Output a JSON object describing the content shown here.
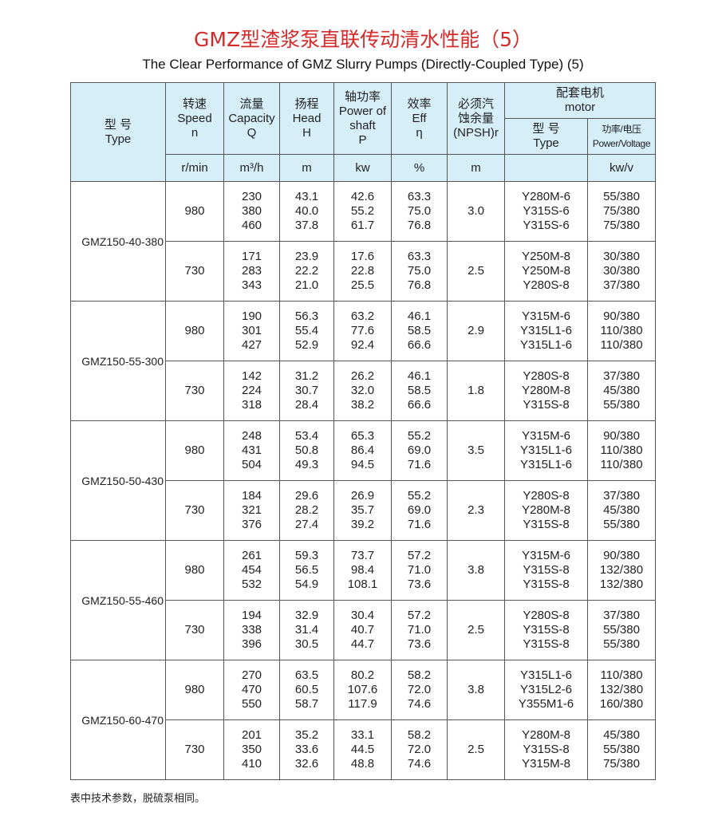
{
  "title": "GMZ型渣浆泵直联传动清水性能（5）",
  "subtitle": "The Clear Performance of GMZ Slurry Pumps (Directly-Coupled Type) (5)",
  "header": {
    "type": [
      "型 号",
      "Type"
    ],
    "speed": [
      "转速",
      "Speed",
      "n"
    ],
    "capacity": [
      "流量",
      "Capacity",
      "Q"
    ],
    "head": [
      "扬程",
      "Head",
      "H"
    ],
    "power": [
      "轴功率",
      "Power of",
      "shaft",
      "P"
    ],
    "eff": [
      "效率",
      "Eff",
      "η"
    ],
    "npsh": [
      "必须汽",
      "蚀余量",
      "(NPSH)r"
    ],
    "motor": [
      "配套电机",
      "motor"
    ],
    "motor_type": [
      "型 号",
      "Type"
    ],
    "motor_pv": [
      "功率/电压",
      "Power/Voltage"
    ],
    "units": {
      "speed": "r/min",
      "capacity": "m³/h",
      "head": "m",
      "power": "kw",
      "eff": "%",
      "npsh": "m",
      "motor_type": "",
      "motor_pv": "kw/v"
    }
  },
  "models": [
    {
      "name": "GMZ150-40-380",
      "speeds": [
        {
          "n": "980",
          "q": [
            "230",
            "380",
            "460"
          ],
          "h": [
            "43.1",
            "40.0",
            "37.8"
          ],
          "p": [
            "42.6",
            "55.2",
            "61.7"
          ],
          "eff": [
            "63.3",
            "75.0",
            "76.8"
          ],
          "npsh": "3.0",
          "motor": [
            "Y280M-6",
            "Y315S-6",
            "Y315S-6"
          ],
          "pv": [
            "55/380",
            "75/380",
            "75/380"
          ]
        },
        {
          "n": "730",
          "q": [
            "171",
            "283",
            "343"
          ],
          "h": [
            "23.9",
            "22.2",
            "21.0"
          ],
          "p": [
            "17.6",
            "22.8",
            "25.5"
          ],
          "eff": [
            "63.3",
            "75.0",
            "76.8"
          ],
          "npsh": "2.5",
          "motor": [
            "Y250M-8",
            "Y250M-8",
            "Y280S-8"
          ],
          "pv": [
            "30/380",
            "30/380",
            "37/380"
          ]
        }
      ]
    },
    {
      "name": "GMZ150-55-300",
      "speeds": [
        {
          "n": "980",
          "q": [
            "190",
            "301",
            "427"
          ],
          "h": [
            "56.3",
            "55.4",
            "52.9"
          ],
          "p": [
            "63.2",
            "77.6",
            "92.4"
          ],
          "eff": [
            "46.1",
            "58.5",
            "66.6"
          ],
          "npsh": "2.9",
          "motor": [
            "Y315M-6",
            "Y315L1-6",
            "Y315L1-6"
          ],
          "pv": [
            "90/380",
            "110/380",
            "110/380"
          ]
        },
        {
          "n": "730",
          "q": [
            "142",
            "224",
            "318"
          ],
          "h": [
            "31.2",
            "30.7",
            "28.4"
          ],
          "p": [
            "26.2",
            "32.0",
            "38.2"
          ],
          "eff": [
            "46.1",
            "58.5",
            "66.6"
          ],
          "npsh": "1.8",
          "motor": [
            "Y280S-8",
            "Y280M-8",
            "Y315S-8"
          ],
          "pv": [
            "37/380",
            "45/380",
            "55/380"
          ]
        }
      ]
    },
    {
      "name": "GMZ150-50-430",
      "speeds": [
        {
          "n": "980",
          "q": [
            "248",
            "431",
            "504"
          ],
          "h": [
            "53.4",
            "50.8",
            "49.3"
          ],
          "p": [
            "65.3",
            "86.4",
            "94.5"
          ],
          "eff": [
            "55.2",
            "69.0",
            "71.6"
          ],
          "npsh": "3.5",
          "motor": [
            "Y315M-6",
            "Y315L1-6",
            "Y315L1-6"
          ],
          "pv": [
            "90/380",
            "110/380",
            "110/380"
          ]
        },
        {
          "n": "730",
          "q": [
            "184",
            "321",
            "376"
          ],
          "h": [
            "29.6",
            "28.2",
            "27.4"
          ],
          "p": [
            "26.9",
            "35.7",
            "39.2"
          ],
          "eff": [
            "55.2",
            "69.0",
            "71.6"
          ],
          "npsh": "2.3",
          "motor": [
            "Y280S-8",
            "Y280M-8",
            "Y315S-8"
          ],
          "pv": [
            "37/380",
            "45/380",
            "55/380"
          ]
        }
      ]
    },
    {
      "name": "GMZ150-55-460",
      "speeds": [
        {
          "n": "980",
          "q": [
            "261",
            "454",
            "532"
          ],
          "h": [
            "59.3",
            "56.5",
            "54.9"
          ],
          "p": [
            "73.7",
            "98.4",
            "108.1"
          ],
          "eff": [
            "57.2",
            "71.0",
            "73.6"
          ],
          "npsh": "3.8",
          "motor": [
            "Y315M-6",
            "Y315S-8",
            "Y315S-8"
          ],
          "pv": [
            "90/380",
            "132/380",
            "132/380"
          ]
        },
        {
          "n": "730",
          "q": [
            "194",
            "338",
            "396"
          ],
          "h": [
            "32.9",
            "31.4",
            "30.5"
          ],
          "p": [
            "30.4",
            "40.7",
            "44.7"
          ],
          "eff": [
            "57.2",
            "71.0",
            "73.6"
          ],
          "npsh": "2.5",
          "motor": [
            "Y280S-8",
            "Y315S-8",
            "Y315S-8"
          ],
          "pv": [
            "37/380",
            "55/380",
            "55/380"
          ]
        }
      ]
    },
    {
      "name": "GMZ150-60-470",
      "speeds": [
        {
          "n": "980",
          "q": [
            "270",
            "470",
            "550"
          ],
          "h": [
            "63.5",
            "60.5",
            "58.7"
          ],
          "p": [
            "80.2",
            "107.6",
            "117.9"
          ],
          "eff": [
            "58.2",
            "72.0",
            "74.6"
          ],
          "npsh": "3.8",
          "motor": [
            "Y315L1-6",
            "Y315L2-6",
            "Y355M1-6"
          ],
          "pv": [
            "110/380",
            "132/380",
            "160/380"
          ]
        },
        {
          "n": "730",
          "q": [
            "201",
            "350",
            "410"
          ],
          "h": [
            "35.2",
            "33.6",
            "32.6"
          ],
          "p": [
            "33.1",
            "44.5",
            "48.8"
          ],
          "eff": [
            "58.2",
            "72.0",
            "74.6"
          ],
          "npsh": "2.5",
          "motor": [
            "Y280M-8",
            "Y315S-8",
            "Y315M-8"
          ],
          "pv": [
            "45/380",
            "55/380",
            "75/380"
          ]
        }
      ]
    }
  ],
  "footnote": "表中技术参数，脱硫泵相同。"
}
